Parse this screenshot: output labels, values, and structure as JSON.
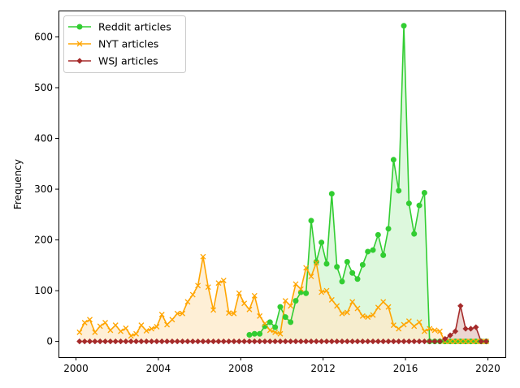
{
  "chart_data": {
    "type": "line",
    "title": "",
    "xlabel": "",
    "ylabel": "Frequency",
    "xlim": [
      1999.15,
      2020.85
    ],
    "ylim": [
      -31,
      652
    ],
    "xticks": [
      2000,
      2004,
      2008,
      2012,
      2016,
      2020
    ],
    "yticks": [
      0,
      100,
      200,
      300,
      400,
      500,
      600
    ],
    "grid": false,
    "legend_position": "top-left",
    "series": [
      {
        "name": "Reddit articles",
        "color": "#32cd32",
        "fill": "#d2f5d2",
        "marker": "circle",
        "x": [
          2008.42,
          2008.67,
          2008.92,
          2009.17,
          2009.42,
          2009.67,
          2009.92,
          2010.17,
          2010.42,
          2010.67,
          2010.92,
          2011.17,
          2011.42,
          2011.67,
          2011.92,
          2012.17,
          2012.42,
          2012.67,
          2012.92,
          2013.17,
          2013.42,
          2013.67,
          2013.92,
          2014.17,
          2014.42,
          2014.67,
          2014.92,
          2015.17,
          2015.42,
          2015.67,
          2015.92,
          2016.17,
          2016.42,
          2016.67,
          2016.92,
          2017.17,
          2017.42,
          2017.67,
          2017.92,
          2018.17,
          2018.42,
          2018.67,
          2018.92,
          2019.17,
          2019.42,
          2019.67,
          2019.92
        ],
        "y": [
          13,
          15,
          15,
          30,
          38,
          28,
          68,
          48,
          38,
          80,
          97,
          95,
          238,
          157,
          195,
          153,
          291,
          147,
          118,
          157,
          135,
          123,
          151,
          177,
          180,
          210,
          170,
          222,
          358,
          297,
          622,
          272,
          212,
          268,
          293,
          0,
          0,
          0,
          0,
          0,
          0,
          0,
          0,
          0,
          0,
          0,
          0
        ]
      },
      {
        "name": "NYT articles",
        "color": "#ffa500",
        "fill": "#fde9c8",
        "marker": "x",
        "x": [
          2000.17,
          2000.42,
          2000.67,
          2000.92,
          2001.17,
          2001.42,
          2001.67,
          2001.92,
          2002.17,
          2002.42,
          2002.67,
          2002.92,
          2003.17,
          2003.42,
          2003.67,
          2003.92,
          2004.17,
          2004.42,
          2004.67,
          2004.92,
          2005.17,
          2005.42,
          2005.67,
          2005.92,
          2006.17,
          2006.42,
          2006.67,
          2006.92,
          2007.17,
          2007.42,
          2007.67,
          2007.92,
          2008.17,
          2008.42,
          2008.67,
          2008.92,
          2009.17,
          2009.42,
          2009.67,
          2009.92,
          2010.17,
          2010.42,
          2010.67,
          2010.92,
          2011.17,
          2011.42,
          2011.67,
          2011.92,
          2012.17,
          2012.42,
          2012.67,
          2012.92,
          2013.17,
          2013.42,
          2013.67,
          2013.92,
          2014.17,
          2014.42,
          2014.67,
          2014.92,
          2015.17,
          2015.42,
          2015.67,
          2015.92,
          2016.17,
          2016.42,
          2016.67,
          2016.92,
          2017.17,
          2017.42,
          2017.67,
          2017.92,
          2018.17,
          2018.42,
          2018.67,
          2018.92,
          2019.17,
          2019.42,
          2019.67,
          2019.92
        ],
        "y": [
          18,
          37,
          43,
          18,
          30,
          37,
          22,
          32,
          20,
          26,
          11,
          15,
          32,
          21,
          25,
          29,
          53,
          33,
          43,
          55,
          55,
          78,
          92,
          110,
          167,
          107,
          62,
          115,
          120,
          56,
          55,
          95,
          75,
          63,
          90,
          50,
          35,
          22,
          18,
          15,
          80,
          70,
          113,
          103,
          145,
          128,
          155,
          97,
          100,
          82,
          70,
          55,
          57,
          78,
          65,
          50,
          48,
          52,
          67,
          78,
          68,
          32,
          25,
          33,
          40,
          30,
          38,
          20,
          25,
          22,
          20,
          0,
          0,
          0,
          0,
          0,
          0,
          0,
          0,
          0
        ],
        "y_trimmed_to": 71
      },
      {
        "name": "WSJ articles",
        "color": "#a52a2a",
        "fill": "#e6c8c3",
        "marker": "diamond",
        "x": [
          2000.17,
          2000.42,
          2000.67,
          2000.92,
          2001.17,
          2001.42,
          2001.67,
          2001.92,
          2002.17,
          2002.42,
          2002.67,
          2002.92,
          2003.17,
          2003.42,
          2003.67,
          2003.92,
          2004.17,
          2004.42,
          2004.67,
          2004.92,
          2005.17,
          2005.42,
          2005.67,
          2005.92,
          2006.17,
          2006.42,
          2006.67,
          2006.92,
          2007.17,
          2007.42,
          2007.67,
          2007.92,
          2008.17,
          2008.42,
          2008.67,
          2008.92,
          2009.17,
          2009.42,
          2009.67,
          2009.92,
          2010.17,
          2010.42,
          2010.67,
          2010.92,
          2011.17,
          2011.42,
          2011.67,
          2011.92,
          2012.17,
          2012.42,
          2012.67,
          2012.92,
          2013.17,
          2013.42,
          2013.67,
          2013.92,
          2014.17,
          2014.42,
          2014.67,
          2014.92,
          2015.17,
          2015.42,
          2015.67,
          2015.92,
          2016.17,
          2016.42,
          2016.67,
          2016.92,
          2017.17,
          2017.42,
          2017.67,
          2017.92,
          2018.17,
          2018.42,
          2018.67,
          2018.92,
          2019.17,
          2019.42,
          2019.67,
          2019.92
        ],
        "y": [
          0,
          0,
          0,
          0,
          0,
          0,
          0,
          0,
          0,
          0,
          0,
          0,
          0,
          0,
          0,
          0,
          0,
          0,
          0,
          0,
          0,
          0,
          0,
          0,
          0,
          0,
          0,
          0,
          0,
          0,
          0,
          0,
          0,
          0,
          0,
          0,
          0,
          0,
          0,
          0,
          0,
          0,
          0,
          0,
          0,
          0,
          0,
          0,
          0,
          0,
          0,
          0,
          0,
          0,
          0,
          0,
          0,
          0,
          0,
          0,
          0,
          0,
          0,
          0,
          0,
          0,
          0,
          0,
          0,
          0,
          0,
          5,
          12,
          20,
          70,
          25,
          25,
          28,
          0,
          0
        ]
      }
    ]
  }
}
